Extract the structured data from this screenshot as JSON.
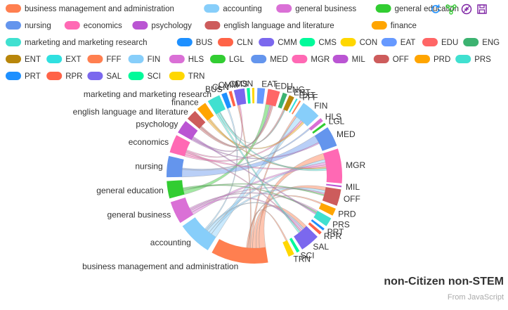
{
  "toolbar": {
    "icons": [
      "refresh-icon",
      "data-view-icon",
      "magic-type-icon",
      "save-image-icon"
    ]
  },
  "footer": {
    "title": "non-Citizen non-STEM",
    "source": "From JavaScript"
  },
  "chart_data": {
    "type": "chord",
    "title": "non-Citizen non-STEM",
    "legend_placement": "top-left",
    "majors": [
      {
        "name": "business management and administration",
        "color": "#ff7f50"
      },
      {
        "name": "accounting",
        "color": "#87cefa"
      },
      {
        "name": "general business",
        "color": "#da70d6"
      },
      {
        "name": "general education",
        "color": "#32cd32"
      },
      {
        "name": "nursing",
        "color": "#6495ed"
      },
      {
        "name": "economics",
        "color": "#ff69b4"
      },
      {
        "name": "psychology",
        "color": "#ba55d3"
      },
      {
        "name": "english language and literature",
        "color": "#cd5c5c"
      },
      {
        "name": "finance",
        "color": "#ffa500"
      },
      {
        "name": "marketing and marketing research",
        "color": "#40e0d0"
      }
    ],
    "occupations": [
      {
        "name": "BUS",
        "color": "#1e90ff"
      },
      {
        "name": "CLN",
        "color": "#ff6347"
      },
      {
        "name": "CMM",
        "color": "#7b68ee"
      },
      {
        "name": "CMS",
        "color": "#00fa9a"
      },
      {
        "name": "CON",
        "color": "#ffd700"
      },
      {
        "name": "EAT",
        "color": "#6699ff"
      },
      {
        "name": "EDU",
        "color": "#ff6666"
      },
      {
        "name": "ENG",
        "color": "#3cb371"
      },
      {
        "name": "ENT",
        "color": "#b8860b"
      },
      {
        "name": "EXT",
        "color": "#30e0e0"
      },
      {
        "name": "FFF",
        "color": "#ff7f50"
      },
      {
        "name": "FIN",
        "color": "#87cefa"
      },
      {
        "name": "HLS",
        "color": "#da70d6"
      },
      {
        "name": "LGL",
        "color": "#32cd32"
      },
      {
        "name": "MED",
        "color": "#6495ed"
      },
      {
        "name": "MGR",
        "color": "#ff69b4"
      },
      {
        "name": "MIL",
        "color": "#ba55d3"
      },
      {
        "name": "OFF",
        "color": "#cd5c5c"
      },
      {
        "name": "PRD",
        "color": "#ffa500"
      },
      {
        "name": "PRS",
        "color": "#40e0d0"
      },
      {
        "name": "PRT",
        "color": "#1e90ff"
      },
      {
        "name": "RPR",
        "color": "#ff6347"
      },
      {
        "name": "SAL",
        "color": "#7b68ee"
      },
      {
        "name": "SCI",
        "color": "#00fa9a"
      },
      {
        "name": "TRN",
        "color": "#ffd700"
      }
    ],
    "arcs": [
      {
        "label": "business management and administration",
        "color": "#ff7f50",
        "start": 171,
        "end": 209,
        "side": "left"
      },
      {
        "label": "accounting",
        "color": "#87cefa",
        "start": 212,
        "end": 235,
        "side": "left"
      },
      {
        "label": "general business",
        "color": "#da70d6",
        "start": 237.5,
        "end": 252.5,
        "side": "left"
      },
      {
        "label": "general education",
        "color": "#32cd32",
        "start": 255,
        "end": 266.5,
        "side": "left"
      },
      {
        "label": "nursing",
        "color": "#6495ed",
        "start": 269,
        "end": 283,
        "side": "left"
      },
      {
        "label": "economics",
        "color": "#ff69b4",
        "start": 285.5,
        "end": 297.5,
        "side": "left"
      },
      {
        "label": "psychology",
        "color": "#ba55d3",
        "start": 299.5,
        "end": 308.5,
        "side": "left"
      },
      {
        "label": "english language and literature",
        "color": "#cd5c5c",
        "start": 310.5,
        "end": 317.5,
        "side": "left"
      },
      {
        "label": "finance",
        "color": "#ffa500",
        "start": 319.5,
        "end": 326,
        "side": "left"
      },
      {
        "label": "marketing and marketing research",
        "color": "#40e0d0",
        "start": 328,
        "end": 336.5,
        "side": "left"
      },
      {
        "label": "BUS",
        "color": "#1e90ff",
        "start": 338,
        "end": 341.5,
        "side": "left"
      },
      {
        "label": "CLN",
        "color": "#ff6347",
        "start": 343,
        "end": 345,
        "side": "left"
      },
      {
        "label": "CMM",
        "color": "#7b68ee",
        "start": 346.5,
        "end": 353.5,
        "side": "right"
      },
      {
        "label": "CMS",
        "color": "#00fa9a",
        "start": 355,
        "end": 357,
        "side": "right"
      },
      {
        "label": "CON",
        "color": "#ffd700",
        "start": 358.5,
        "end": 360,
        "side": "right"
      },
      {
        "label": "EAT",
        "color": "#6699ff",
        "start": 362,
        "end": 367,
        "side": "right"
      },
      {
        "label": "EDU",
        "color": "#ff6666",
        "start": 369,
        "end": 377,
        "side": "right"
      },
      {
        "label": "ENG",
        "color": "#3cb371",
        "start": 379,
        "end": 382,
        "side": "right"
      },
      {
        "label": "ENT",
        "color": "#b8860b",
        "start": 383.5,
        "end": 387,
        "side": "right"
      },
      {
        "label": "EXT",
        "color": "#30e0e0",
        "start": 388.5,
        "end": 389.5,
        "side": "right"
      },
      {
        "label": "FFF",
        "color": "#ff7f50",
        "start": 391,
        "end": 392,
        "side": "right"
      },
      {
        "label": "FIN",
        "color": "#87cefa",
        "start": 394,
        "end": 407,
        "side": "right"
      },
      {
        "label": "HLS",
        "color": "#da70d6",
        "start": 409,
        "end": 411.5,
        "side": "right"
      },
      {
        "label": "LGL",
        "color": "#32cd32",
        "start": 413,
        "end": 414.5,
        "side": "right"
      },
      {
        "label": "MED",
        "color": "#6495ed",
        "start": 416.5,
        "end": 430,
        "side": "right"
      },
      {
        "label": "MGR",
        "color": "#ff69b4",
        "start": 432,
        "end": 455,
        "side": "right"
      },
      {
        "label": "MIL",
        "color": "#ba55d3",
        "start": 456.5,
        "end": 457.5,
        "side": "right"
      },
      {
        "label": "OFF",
        "color": "#cd5c5c",
        "start": 459,
        "end": 470,
        "side": "right"
      },
      {
        "label": "PRD",
        "color": "#ffa500",
        "start": 472,
        "end": 477,
        "side": "right"
      },
      {
        "label": "PRS",
        "color": "#40e0d0",
        "start": 479,
        "end": 485,
        "side": "right"
      },
      {
        "label": "PRT",
        "color": "#1e90ff",
        "start": 487,
        "end": 488.5,
        "side": "right"
      },
      {
        "label": "RPR",
        "color": "#ff6347",
        "start": 490,
        "end": 492,
        "side": "right"
      },
      {
        "label": "SAL",
        "color": "#7b68ee",
        "start": 494,
        "end": 507,
        "side": "right"
      },
      {
        "label": "SCI",
        "color": "#00fa9a",
        "start": 509,
        "end": 511,
        "side": "right"
      },
      {
        "label": "TRN",
        "color": "#ffd700",
        "start": 513,
        "end": 517,
        "side": "right"
      }
    ],
    "links": [
      {
        "source": "business management and administration",
        "target": "MGR",
        "value": 9
      },
      {
        "source": "business management and administration",
        "target": "OFF",
        "value": 5
      },
      {
        "source": "business management and administration",
        "target": "SAL",
        "value": 5
      },
      {
        "source": "business management and administration",
        "target": "FIN",
        "value": 3
      },
      {
        "source": "business management and administration",
        "target": "CMM",
        "value": 2
      },
      {
        "source": "business management and administration",
        "target": "TRN",
        "value": 2
      },
      {
        "source": "business management and administration",
        "target": "PRD",
        "value": 2
      },
      {
        "source": "accounting",
        "target": "FIN",
        "value": 8
      },
      {
        "source": "accounting",
        "target": "OFF",
        "value": 4
      },
      {
        "source": "accounting",
        "target": "MGR",
        "value": 4
      },
      {
        "source": "accounting",
        "target": "SAL",
        "value": 2
      },
      {
        "source": "accounting",
        "target": "BUS",
        "value": 2
      },
      {
        "source": "general business",
        "target": "MGR",
        "value": 4
      },
      {
        "source": "general business",
        "target": "SAL",
        "value": 3
      },
      {
        "source": "general business",
        "target": "OFF",
        "value": 2
      },
      {
        "source": "general business",
        "target": "PRS",
        "value": 2
      },
      {
        "source": "general education",
        "target": "EDU",
        "value": 6
      },
      {
        "source": "general education",
        "target": "OFF",
        "value": 2
      },
      {
        "source": "general education",
        "target": "PRS",
        "value": 2
      },
      {
        "source": "nursing",
        "target": "MED",
        "value": 11
      },
      {
        "source": "nursing",
        "target": "HLS",
        "value": 2
      },
      {
        "source": "economics",
        "target": "FIN",
        "value": 3
      },
      {
        "source": "economics",
        "target": "MGR",
        "value": 3
      },
      {
        "source": "economics",
        "target": "SAL",
        "value": 2
      },
      {
        "source": "economics",
        "target": "CMM",
        "value": 2
      },
      {
        "source": "psychology",
        "target": "MED",
        "value": 2
      },
      {
        "source": "psychology",
        "target": "EDU",
        "value": 2
      },
      {
        "source": "psychology",
        "target": "PRS",
        "value": 2
      },
      {
        "source": "english language and literature",
        "target": "EDU",
        "value": 3
      },
      {
        "source": "english language and literature",
        "target": "ENT",
        "value": 2
      },
      {
        "source": "finance",
        "target": "FIN",
        "value": 3
      },
      {
        "source": "finance",
        "target": "MGR",
        "value": 2
      },
      {
        "source": "marketing and marketing research",
        "target": "SAL",
        "value": 3
      },
      {
        "source": "marketing and marketing research",
        "target": "MGR",
        "value": 3
      },
      {
        "source": "marketing and marketing research",
        "target": "ENT",
        "value": 1
      }
    ]
  }
}
